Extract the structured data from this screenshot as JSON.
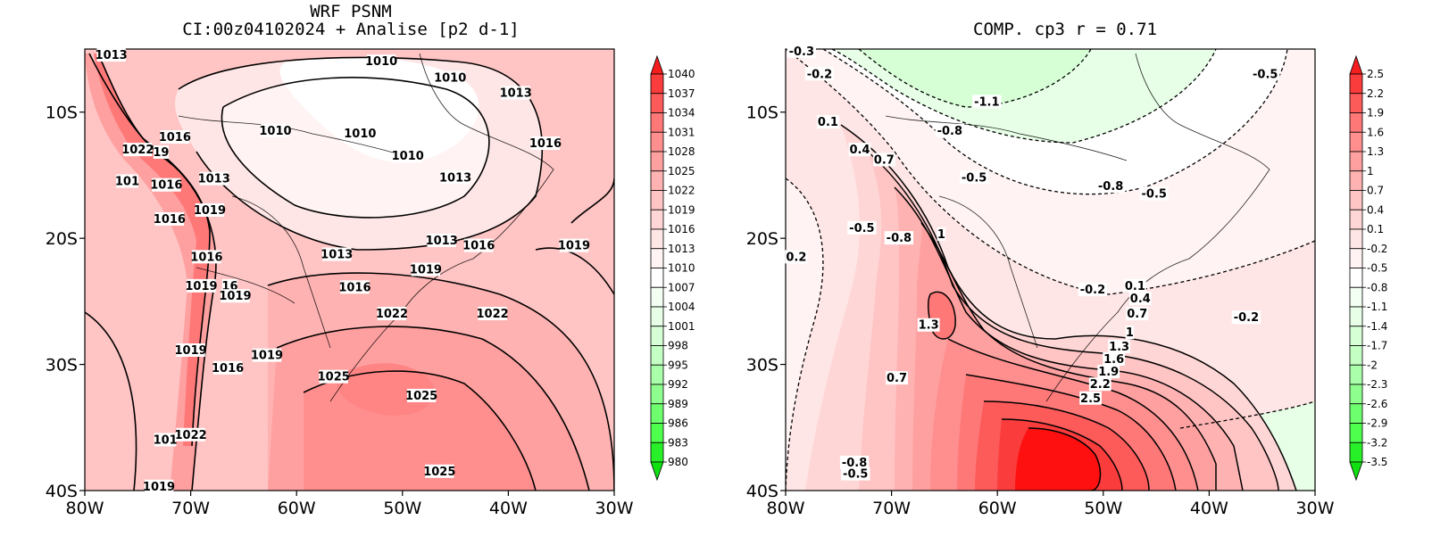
{
  "left_panel": {
    "title_line1": "WRF PSNM",
    "title_line2": "CI:00z04102024 + Analise  [p2 d-1]",
    "colorbar": {
      "labels": [
        "1040",
        "1037",
        "1034",
        "1031",
        "1028",
        "1025",
        "1022",
        "1019",
        "1016",
        "1013",
        "1010",
        "1007",
        "1004",
        "1001",
        "998",
        "995",
        "992",
        "989",
        "986",
        "983",
        "980"
      ],
      "colors": [
        "#f51e1e",
        "#fa3c3c",
        "#fd5a5a",
        "#ff7878",
        "#ff8e8e",
        "#ffa0a0",
        "#ffb2b2",
        "#ffc4c4",
        "#ffd6d6",
        "#ffe6e6",
        "#fff3f3",
        "#ffffff",
        "#f3fff3",
        "#e6ffe6",
        "#d6ffd6",
        "#c4ffc4",
        "#aaffaa",
        "#8eff8e",
        "#6eff6e",
        "#4eff4e",
        "#28f028",
        "#10e010"
      ]
    },
    "contour_labels": [
      {
        "text": "1013",
        "x": -77.5,
        "y": -5.5
      },
      {
        "text": "1016",
        "x": -71.5,
        "y": -12.0
      },
      {
        "text": "1022",
        "x": -75.0,
        "y": -13.0
      },
      {
        "text": "19",
        "x": -72.8,
        "y": -13.2
      },
      {
        "text": "1016",
        "x": -72.3,
        "y": -15.8
      },
      {
        "text": "101",
        "x": -76.0,
        "y": -15.5
      },
      {
        "text": "1013",
        "x": -67.8,
        "y": -15.3
      },
      {
        "text": "1019",
        "x": -68.2,
        "y": -17.8
      },
      {
        "text": "1016",
        "x": -72.0,
        "y": -18.5
      },
      {
        "text": "1010",
        "x": -62.0,
        "y": -11.5
      },
      {
        "text": "1010",
        "x": -54.0,
        "y": -11.7
      },
      {
        "text": "1010",
        "x": -49.5,
        "y": -13.5
      },
      {
        "text": "1013",
        "x": -45.0,
        "y": -15.2
      },
      {
        "text": "1010",
        "x": -52.0,
        "y": -6.0
      },
      {
        "text": "1010",
        "x": -45.5,
        "y": -7.3
      },
      {
        "text": "1013",
        "x": -39.3,
        "y": -8.5
      },
      {
        "text": "1016",
        "x": -36.5,
        "y": -12.5
      },
      {
        "text": "1013",
        "x": -46.3,
        "y": -20.2
      },
      {
        "text": "1016",
        "x": -42.8,
        "y": -20.6
      },
      {
        "text": "1013",
        "x": -56.2,
        "y": -21.3
      },
      {
        "text": "1019",
        "x": -47.8,
        "y": -22.5
      },
      {
        "text": "1019",
        "x": -33.8,
        "y": -20.6
      },
      {
        "text": "1016",
        "x": -68.5,
        "y": -21.5
      },
      {
        "text": "1019",
        "x": -69.0,
        "y": -23.8
      },
      {
        "text": "16",
        "x": -66.3,
        "y": -23.8
      },
      {
        "text": "1019",
        "x": -65.8,
        "y": -24.6
      },
      {
        "text": "1016",
        "x": -54.5,
        "y": -23.9
      },
      {
        "text": "1022",
        "x": -51.0,
        "y": -26.0
      },
      {
        "text": "1022",
        "x": -41.5,
        "y": -26.0
      },
      {
        "text": "1019",
        "x": -70.0,
        "y": -28.9
      },
      {
        "text": "1019",
        "x": -62.8,
        "y": -29.3
      },
      {
        "text": "1016",
        "x": -66.5,
        "y": -30.3
      },
      {
        "text": "1025",
        "x": -56.5,
        "y": -31.0
      },
      {
        "text": "1025",
        "x": -48.2,
        "y": -32.5
      },
      {
        "text": "1022",
        "x": -70.0,
        "y": -35.6
      },
      {
        "text": "101",
        "x": -72.4,
        "y": -36.0
      },
      {
        "text": "1025",
        "x": -46.5,
        "y": -38.5
      },
      {
        "text": "1019",
        "x": -73.0,
        "y": -39.7
      }
    ]
  },
  "right_panel": {
    "title": "COMP. cp3   r =  0.71",
    "colorbar": {
      "labels": [
        "2.5",
        "2.2",
        "1.9",
        "1.6",
        "1.3",
        "1",
        "0.7",
        "0.4",
        "0.1",
        "-0.2",
        "-0.5",
        "-0.8",
        "-1.1",
        "-1.4",
        "-1.7",
        "-2",
        "-2.3",
        "-2.6",
        "-2.9",
        "-3.2",
        "-3.5"
      ],
      "colors": [
        "#f51e1e",
        "#fa3c3c",
        "#fd5a5a",
        "#ff7878",
        "#ff8e8e",
        "#ffa0a0",
        "#ffb2b2",
        "#ffc4c4",
        "#ffd6d6",
        "#ffe6e6",
        "#fff3f3",
        "#ffffff",
        "#f3fff3",
        "#e6ffe6",
        "#d6ffd6",
        "#c4ffc4",
        "#aaffaa",
        "#8eff8e",
        "#6eff6e",
        "#4eff4e",
        "#28f028",
        "#10e010"
      ]
    },
    "contour_labels": [
      {
        "text": "-0.3",
        "x": -78.5,
        "y": -5.2
      },
      {
        "text": "-0.2",
        "x": -76.8,
        "y": -7.0
      },
      {
        "text": "-1.1",
        "x": -61.0,
        "y": -9.2
      },
      {
        "text": "-0.8",
        "x": -64.5,
        "y": -11.5
      },
      {
        "text": "-0.5",
        "x": -34.7,
        "y": -7.0
      },
      {
        "text": "0.1",
        "x": -76.0,
        "y": -10.8
      },
      {
        "text": "0.4",
        "x": -73.0,
        "y": -13.0
      },
      {
        "text": "0.7",
        "x": -70.7,
        "y": -13.8
      },
      {
        "text": "-0.5",
        "x": -62.2,
        "y": -15.2
      },
      {
        "text": "-0.8",
        "x": -49.3,
        "y": -15.9
      },
      {
        "text": "-0.5",
        "x": -45.2,
        "y": -16.5
      },
      {
        "text": "-0.5",
        "x": -72.8,
        "y": -19.2
      },
      {
        "text": "-0.8",
        "x": -69.3,
        "y": -20.0
      },
      {
        "text": "1",
        "x": -65.3,
        "y": -19.7
      },
      {
        "text": "0.2",
        "x": -79.0,
        "y": -21.5
      },
      {
        "text": "-0.2",
        "x": -51.0,
        "y": -24.1
      },
      {
        "text": "0.1",
        "x": -47.0,
        "y": -23.8
      },
      {
        "text": "0.4",
        "x": -46.5,
        "y": -24.8
      },
      {
        "text": "0.7",
        "x": -46.8,
        "y": -26.0
      },
      {
        "text": "-0.2",
        "x": -36.5,
        "y": -26.3
      },
      {
        "text": "1.3",
        "x": -66.5,
        "y": -26.9
      },
      {
        "text": "1",
        "x": -47.5,
        "y": -27.5
      },
      {
        "text": "1.3",
        "x": -48.5,
        "y": -28.6
      },
      {
        "text": "1.6",
        "x": -49.0,
        "y": -29.6
      },
      {
        "text": "1.9",
        "x": -49.5,
        "y": -30.6
      },
      {
        "text": "2.2",
        "x": -50.3,
        "y": -31.6
      },
      {
        "text": "2.5",
        "x": -51.2,
        "y": -32.7
      },
      {
        "text": "0.7",
        "x": -69.5,
        "y": -31.1
      },
      {
        "text": "-0.8",
        "x": -73.5,
        "y": -37.8
      },
      {
        "text": "-0.5",
        "x": -73.4,
        "y": -38.7
      }
    ]
  },
  "axes": {
    "x_ticks": [
      "80W",
      "70W",
      "60W",
      "50W",
      "40W",
      "30W"
    ],
    "y_ticks": [
      "10S",
      "20S",
      "30S",
      "40S"
    ]
  }
}
